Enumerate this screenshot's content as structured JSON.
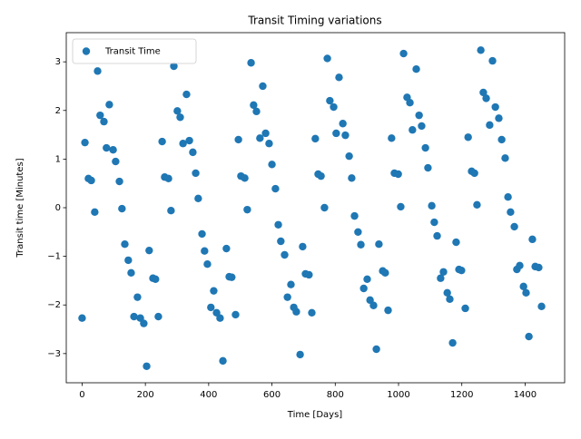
{
  "chart_data": {
    "type": "scatter",
    "title": "Transit Timing variations",
    "x_label": "Time [Days]",
    "y_label": "Transit time [Minutes]",
    "series": [
      {
        "name": "Transit Time",
        "color": "#1f77b4",
        "x": [
          0,
          9,
          20,
          29,
          40,
          49,
          57,
          69,
          77,
          86,
          98,
          106,
          118,
          126,
          135,
          146,
          155,
          164,
          175,
          184,
          195,
          204,
          212,
          224,
          232,
          241,
          253,
          261,
          273,
          281,
          290,
          301,
          310,
          319,
          330,
          339,
          350,
          359,
          367,
          379,
          387,
          396,
          407,
          416,
          425,
          436,
          445,
          456,
          465,
          473,
          485,
          494,
          502,
          514,
          522,
          534,
          542,
          551,
          562,
          571,
          580,
          591,
          600,
          611,
          620,
          628,
          640,
          649,
          660,
          669,
          677,
          689,
          697,
          706,
          717,
          726,
          737,
          746,
          755,
          766,
          775,
          783,
          795,
          803,
          812,
          824,
          832,
          844,
          852,
          861,
          872,
          881,
          890,
          901,
          910,
          921,
          930,
          938,
          950,
          958,
          967,
          978,
          987,
          999,
          1007,
          1016,
          1027,
          1036,
          1044,
          1056,
          1065,
          1073,
          1085,
          1093,
          1105,
          1113,
          1122,
          1133,
          1142,
          1154,
          1162,
          1171,
          1182,
          1191,
          1199,
          1211,
          1220,
          1231,
          1240,
          1248,
          1260,
          1268,
          1277,
          1288,
          1297,
          1306,
          1317,
          1326,
          1337,
          1346,
          1354,
          1366,
          1374,
          1383,
          1395,
          1403,
          1412,
          1423,
          1432,
          1443,
          1452
        ],
        "values": [
          -2.27,
          1.34,
          0.6,
          0.56,
          -0.09,
          2.81,
          1.9,
          1.77,
          1.23,
          2.12,
          1.19,
          0.95,
          0.54,
          -0.02,
          -0.75,
          -1.08,
          -1.34,
          -2.24,
          -1.84,
          -2.27,
          -2.38,
          -3.26,
          -0.88,
          -1.45,
          -1.47,
          -2.24,
          1.36,
          0.63,
          0.6,
          -0.06,
          2.91,
          1.99,
          1.86,
          1.32,
          2.33,
          1.38,
          1.14,
          0.71,
          0.19,
          -0.54,
          -0.89,
          -1.16,
          -2.05,
          -1.71,
          -2.16,
          -2.27,
          -3.15,
          -0.84,
          -1.42,
          -1.43,
          -2.2,
          1.4,
          0.65,
          0.61,
          -0.04,
          2.98,
          2.11,
          1.98,
          1.43,
          2.5,
          1.53,
          1.32,
          0.89,
          0.39,
          -0.35,
          -0.69,
          -0.97,
          -1.84,
          -1.58,
          -2.05,
          -2.14,
          -3.02,
          -0.8,
          -1.36,
          -1.38,
          -2.16,
          1.42,
          0.69,
          0.65,
          0.0,
          3.07,
          2.2,
          2.07,
          1.53,
          2.68,
          1.73,
          1.49,
          1.06,
          0.61,
          -0.17,
          -0.5,
          -0.76,
          -1.66,
          -1.47,
          -1.9,
          -2.01,
          -2.91,
          -0.75,
          -1.3,
          -1.34,
          -2.11,
          1.43,
          0.71,
          0.69,
          0.02,
          3.17,
          2.27,
          2.16,
          1.6,
          2.85,
          1.9,
          1.68,
          1.23,
          0.82,
          0.04,
          -0.3,
          -0.58,
          -1.45,
          -1.32,
          -1.75,
          -1.88,
          -2.78,
          -0.71,
          -1.27,
          -1.29,
          -2.07,
          1.45,
          0.75,
          0.71,
          0.06,
          3.24,
          2.37,
          2.25,
          1.7,
          3.02,
          2.07,
          1.84,
          1.4,
          1.02,
          0.22,
          -0.09,
          -0.39,
          -1.27,
          -1.19,
          -1.62,
          -1.75,
          -2.65,
          -0.65,
          -1.21,
          -1.23,
          -2.03
        ]
      }
    ],
    "xlim": [
      -50,
      1525
    ],
    "ylim": [
      -3.6,
      3.6
    ],
    "xticks": [
      0,
      200,
      400,
      600,
      800,
      1000,
      1200,
      1400
    ],
    "yticks": [
      {
        "value": -3,
        "label": "−3"
      },
      {
        "value": -2,
        "label": "−2"
      },
      {
        "value": -1,
        "label": "−1"
      },
      0,
      1,
      2,
      3
    ],
    "legend": "upper left"
  }
}
